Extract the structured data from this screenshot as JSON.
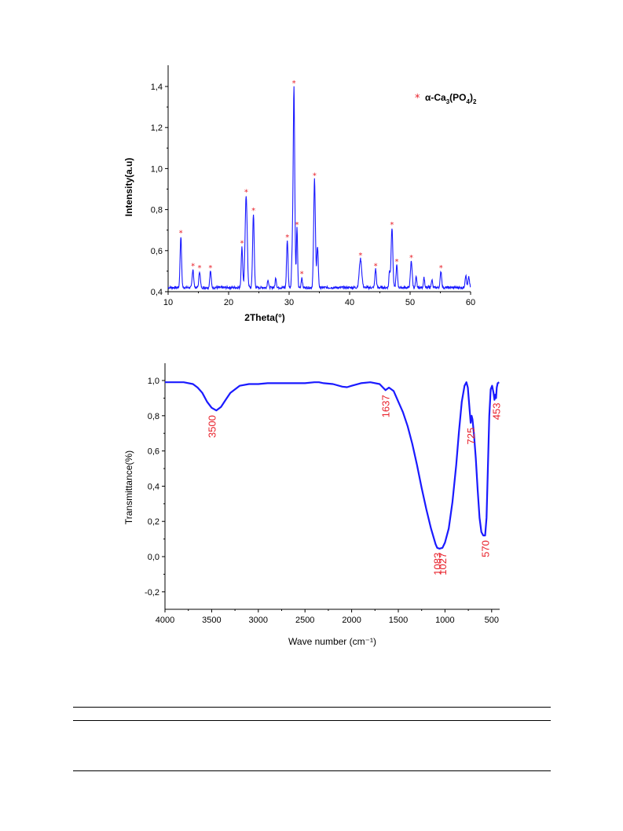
{
  "chart_data": [
    {
      "type": "line",
      "xlabel": "2Theta(°)",
      "ylabel": "Intensity(a.u)",
      "xlim": [
        10,
        60
      ],
      "ylim": [
        0.4,
        1.5
      ],
      "xticks": [
        10,
        20,
        30,
        40,
        50,
        60
      ],
      "xtick_labels": [
        "10",
        "20",
        "30",
        "40",
        "50",
        "60"
      ],
      "yticks": [
        0.4,
        0.6,
        0.8,
        1.0,
        1.2,
        1.4
      ],
      "ytick_labels": [
        "0,4",
        "0,6",
        "0,8",
        "1,0",
        "1,2",
        "1,4"
      ],
      "legend": {
        "label": "α-Ca3(PO4)2",
        "marker": "*",
        "placement": "top-right"
      },
      "colors": {
        "line": "#1a1aff",
        "marker": "#e8202a"
      },
      "baseline": 0.42,
      "peaks": [
        {
          "x": 12.1,
          "y": 0.67,
          "w": 0.12
        },
        {
          "x": 14.1,
          "y": 0.51,
          "w": 0.12
        },
        {
          "x": 15.2,
          "y": 0.5,
          "w": 0.12
        },
        {
          "x": 17.0,
          "y": 0.5,
          "w": 0.12
        },
        {
          "x": 22.2,
          "y": 0.62,
          "w": 0.12
        },
        {
          "x": 22.9,
          "y": 0.87,
          "w": 0.17
        },
        {
          "x": 24.1,
          "y": 0.78,
          "w": 0.13
        },
        {
          "x": 26.5,
          "y": 0.46,
          "w": 0.1
        },
        {
          "x": 27.8,
          "y": 0.47,
          "w": 0.1
        },
        {
          "x": 29.7,
          "y": 0.65,
          "w": 0.12
        },
        {
          "x": 30.5,
          "y": 0.57,
          "w": 0.1
        },
        {
          "x": 30.8,
          "y": 1.4,
          "w": 0.13
        },
        {
          "x": 31.3,
          "y": 0.71,
          "w": 0.1
        },
        {
          "x": 32.1,
          "y": 0.47,
          "w": 0.1
        },
        {
          "x": 34.2,
          "y": 0.95,
          "w": 0.14
        },
        {
          "x": 34.7,
          "y": 0.62,
          "w": 0.12
        },
        {
          "x": 41.8,
          "y": 0.56,
          "w": 0.2
        },
        {
          "x": 44.3,
          "y": 0.51,
          "w": 0.12
        },
        {
          "x": 46.6,
          "y": 0.5,
          "w": 0.1
        },
        {
          "x": 47.0,
          "y": 0.71,
          "w": 0.14
        },
        {
          "x": 47.8,
          "y": 0.53,
          "w": 0.12
        },
        {
          "x": 50.2,
          "y": 0.55,
          "w": 0.14
        },
        {
          "x": 51.0,
          "y": 0.47,
          "w": 0.1
        },
        {
          "x": 52.3,
          "y": 0.47,
          "w": 0.1
        },
        {
          "x": 53.6,
          "y": 0.46,
          "w": 0.1
        },
        {
          "x": 55.1,
          "y": 0.5,
          "w": 0.12
        },
        {
          "x": 59.2,
          "y": 0.48,
          "w": 0.12
        },
        {
          "x": 59.7,
          "y": 0.47,
          "w": 0.12
        }
      ],
      "star_peaks": [
        {
          "x": 12.1,
          "y": 0.67
        },
        {
          "x": 14.1,
          "y": 0.51
        },
        {
          "x": 15.2,
          "y": 0.5
        },
        {
          "x": 17.0,
          "y": 0.5
        },
        {
          "x": 22.2,
          "y": 0.62
        },
        {
          "x": 22.9,
          "y": 0.87
        },
        {
          "x": 24.1,
          "y": 0.78
        },
        {
          "x": 29.7,
          "y": 0.65
        },
        {
          "x": 30.8,
          "y": 1.4
        },
        {
          "x": 31.3,
          "y": 0.71
        },
        {
          "x": 32.1,
          "y": 0.47
        },
        {
          "x": 34.2,
          "y": 0.95
        },
        {
          "x": 41.8,
          "y": 0.56
        },
        {
          "x": 44.3,
          "y": 0.51
        },
        {
          "x": 47.0,
          "y": 0.71
        },
        {
          "x": 47.8,
          "y": 0.53
        },
        {
          "x": 50.2,
          "y": 0.55
        },
        {
          "x": 55.1,
          "y": 0.5
        }
      ]
    },
    {
      "type": "line",
      "xlabel": "Wave number (cm⁻¹)",
      "ylabel": "Transmittance(%)",
      "xlim": [
        4000,
        400
      ],
      "ylim": [
        -0.3,
        1.1
      ],
      "xticks": [
        4000,
        3500,
        3000,
        2500,
        2000,
        1500,
        1000,
        500
      ],
      "xtick_labels": [
        "4000",
        "3500",
        "3000",
        "2500",
        "2000",
        "1500",
        "1000",
        "500"
      ],
      "yticks": [
        -0.2,
        0.0,
        0.2,
        0.4,
        0.6,
        0.8,
        1.0
      ],
      "ytick_labels": [
        "-0,2",
        "0,0",
        "0,2",
        "0,4",
        "0,6",
        "0,8",
        "1,0"
      ],
      "colors": {
        "line": "#1a1aff",
        "label": "#e8202a"
      },
      "points": [
        [
          4000,
          0.99
        ],
        [
          3900,
          0.99
        ],
        [
          3800,
          0.99
        ],
        [
          3700,
          0.98
        ],
        [
          3650,
          0.96
        ],
        [
          3600,
          0.93
        ],
        [
          3550,
          0.88
        ],
        [
          3500,
          0.845
        ],
        [
          3450,
          0.83
        ],
        [
          3400,
          0.85
        ],
        [
          3350,
          0.89
        ],
        [
          3300,
          0.93
        ],
        [
          3200,
          0.97
        ],
        [
          3100,
          0.98
        ],
        [
          3000,
          0.98
        ],
        [
          2900,
          0.985
        ],
        [
          2800,
          0.985
        ],
        [
          2700,
          0.985
        ],
        [
          2600,
          0.985
        ],
        [
          2500,
          0.985
        ],
        [
          2400,
          0.99
        ],
        [
          2350,
          0.99
        ],
        [
          2300,
          0.985
        ],
        [
          2200,
          0.98
        ],
        [
          2100,
          0.965
        ],
        [
          2050,
          0.962
        ],
        [
          2000,
          0.97
        ],
        [
          1900,
          0.985
        ],
        [
          1800,
          0.99
        ],
        [
          1700,
          0.98
        ],
        [
          1637,
          0.945
        ],
        [
          1600,
          0.96
        ],
        [
          1550,
          0.94
        ],
        [
          1500,
          0.88
        ],
        [
          1450,
          0.82
        ],
        [
          1400,
          0.74
        ],
        [
          1350,
          0.64
        ],
        [
          1300,
          0.52
        ],
        [
          1250,
          0.39
        ],
        [
          1200,
          0.27
        ],
        [
          1150,
          0.16
        ],
        [
          1100,
          0.07
        ],
        [
          1083,
          0.05
        ],
        [
          1060,
          0.045
        ],
        [
          1027,
          0.05
        ],
        [
          1000,
          0.08
        ],
        [
          960,
          0.16
        ],
        [
          920,
          0.31
        ],
        [
          880,
          0.52
        ],
        [
          850,
          0.71
        ],
        [
          820,
          0.88
        ],
        [
          790,
          0.97
        ],
        [
          770,
          0.99
        ],
        [
          755,
          0.96
        ],
        [
          740,
          0.86
        ],
        [
          725,
          0.76
        ],
        [
          715,
          0.8
        ],
        [
          705,
          0.78
        ],
        [
          690,
          0.7
        ],
        [
          670,
          0.56
        ],
        [
          650,
          0.38
        ],
        [
          630,
          0.22
        ],
        [
          610,
          0.14
        ],
        [
          590,
          0.12
        ],
        [
          570,
          0.12
        ],
        [
          555,
          0.22
        ],
        [
          540,
          0.5
        ],
        [
          525,
          0.8
        ],
        [
          510,
          0.95
        ],
        [
          495,
          0.97
        ],
        [
          480,
          0.93
        ],
        [
          470,
          0.89
        ],
        [
          460,
          0.92
        ],
        [
          453,
          0.9
        ],
        [
          445,
          0.96
        ],
        [
          435,
          0.985
        ],
        [
          420,
          0.99
        ]
      ],
      "peak_labels": [
        {
          "x": 3500,
          "y": 0.83,
          "text": "3500"
        },
        {
          "x": 1637,
          "y": 0.945,
          "text": "1637"
        },
        {
          "x": 1083,
          "y": 0.05,
          "text": "1083"
        },
        {
          "x": 1027,
          "y": 0.05,
          "text": "1027"
        },
        {
          "x": 725,
          "y": 0.76,
          "text": "725"
        },
        {
          "x": 570,
          "y": 0.12,
          "text": "570"
        },
        {
          "x": 453,
          "y": 0.9,
          "text": "453"
        }
      ]
    }
  ]
}
